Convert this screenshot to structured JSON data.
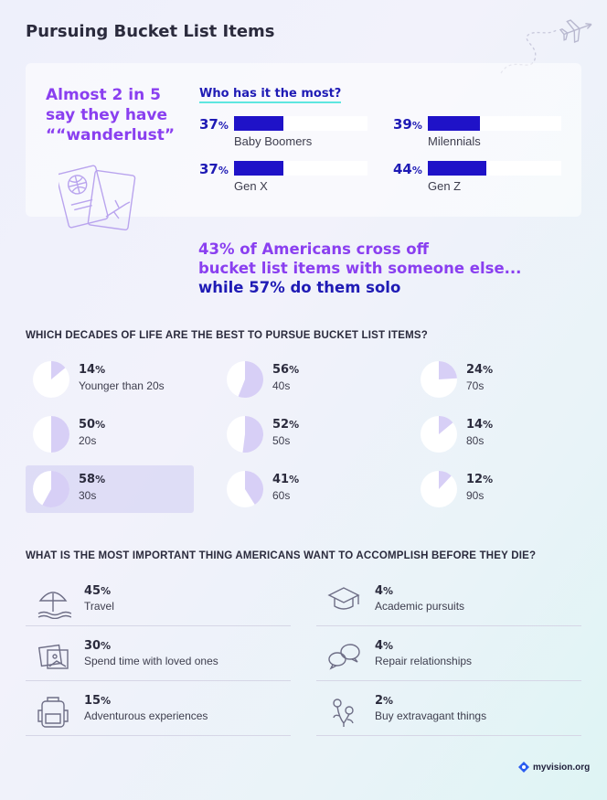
{
  "title": "Pursuing Bucket List Items",
  "wanderlust": {
    "line1": "Almost 2 in 5",
    "line2": "say they have",
    "line3": "““wanderlust”"
  },
  "who_heading": "Who has it the most?",
  "together": {
    "line1": "43% of Americans cross off",
    "line2": "bucket list items with someone else...",
    "line3": "while 57% do them solo"
  },
  "decades_heading": "WHICH DECADES OF LIFE ARE THE BEST TO PURSUE BUCKET LIST ITEMS?",
  "goals_heading": "WHAT IS THE MOST IMPORTANT THING AMERICANS WANT TO ACCOMPLISH BEFORE THEY DIE?",
  "logo_text": "myvision.org",
  "colors": {
    "bar": "#1f12c8",
    "purple": "#8a3ff0",
    "navy": "#1f1bb5",
    "pie_fill": "#d7cff6",
    "pie_bg": "#ffffff",
    "icon": "#6e6e86"
  },
  "chart_data": [
    {
      "type": "bar",
      "title": "Who has it the most?",
      "categories": [
        "Baby Boomers",
        "Milennials",
        "Gen X",
        "Gen Z"
      ],
      "values": [
        37,
        39,
        37,
        44
      ],
      "value_labels": [
        "37",
        "39",
        "37",
        "44"
      ],
      "unit": "%",
      "ylim": [
        0,
        100
      ]
    },
    {
      "type": "pie",
      "title": "WHICH DECADES OF LIFE ARE THE BEST TO PURSUE BUCKET LIST ITEMS?",
      "categories": [
        "Younger than 20s",
        "20s",
        "30s",
        "40s",
        "50s",
        "60s",
        "70s",
        "80s",
        "90s"
      ],
      "values": [
        14,
        50,
        58,
        56,
        52,
        41,
        24,
        14,
        12
      ],
      "value_labels": [
        "14",
        "50",
        "58",
        "56",
        "52",
        "41",
        "24",
        "14",
        "12"
      ],
      "unit": "%",
      "highlighted": "30s"
    },
    {
      "type": "table",
      "title": "WHAT IS THE MOST IMPORTANT THING AMERICANS WANT TO ACCOMPLISH BEFORE THEY DIE?",
      "categories": [
        "Travel",
        "Spend time with loved ones",
        "Adventurous experiences",
        "Academic pursuits",
        "Repair relationships",
        "Buy extravagant things"
      ],
      "values": [
        45,
        30,
        15,
        4,
        4,
        2
      ],
      "value_labels": [
        "45",
        "30",
        "15",
        "4",
        "4",
        "2"
      ],
      "unit": "%",
      "icons": [
        "beach-umbrella-icon",
        "photos-icon",
        "backpack-icon",
        "graduation-cap-icon",
        "speech-bubbles-icon",
        "flowers-icon"
      ]
    }
  ]
}
